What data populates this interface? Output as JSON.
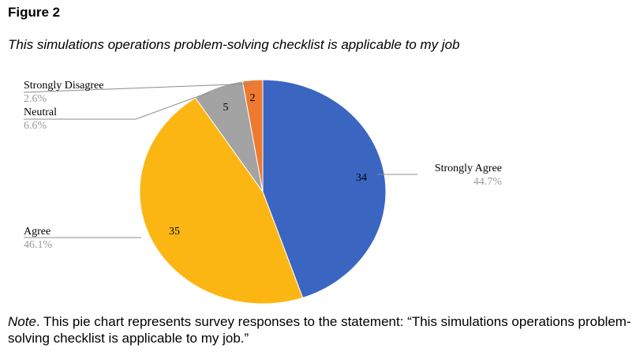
{
  "figure": {
    "label": "Figure 2",
    "title": "This simulations operations problem-solving checklist is applicable to my job"
  },
  "note": {
    "lead": "Note",
    "text": ". This pie chart represents survey responses to the statement: “This simulations operations problem-solving checklist is applicable to my job.”"
  },
  "chart_data": {
    "type": "pie",
    "title": "",
    "start_angle_deg": 0,
    "direction": "clockwise",
    "slices": [
      {
        "label": "Strongly Agree",
        "value": 34,
        "percent": "44.7%",
        "color": "#3A66C2",
        "callout": "right"
      },
      {
        "label": "Agree",
        "value": 35,
        "percent": "46.1%",
        "color": "#FCB614",
        "callout": "left"
      },
      {
        "label": "Neutral",
        "value": 5,
        "percent": "6.6%",
        "color": "#A3A3A3",
        "callout": "left"
      },
      {
        "label": "Strongly Disagree",
        "value": 2,
        "percent": "2.6%",
        "color": "#EE7A30",
        "callout": "left"
      }
    ]
  }
}
